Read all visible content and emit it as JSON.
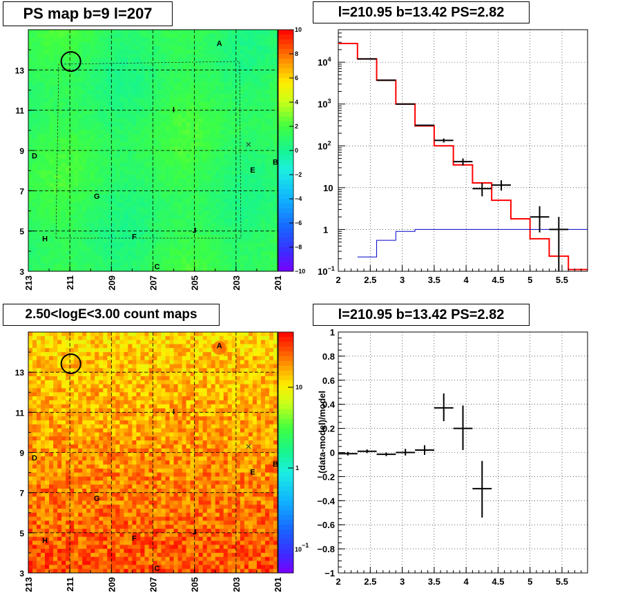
{
  "panels": {
    "tl": {
      "title": "PS map b=9 l=207",
      "x_ticks": [
        "213",
        "211",
        "209",
        "207",
        "205",
        "203",
        "201"
      ],
      "y_ticks": [
        "13",
        "11",
        "9",
        "7",
        "5",
        "3"
      ],
      "colorbar_ticks": [
        "10",
        "8",
        "6",
        "4",
        "2",
        "0",
        "−2",
        "−4",
        "−6",
        "−8",
        "−10"
      ]
    },
    "bl": {
      "title": "2.50<logE<3.00 count maps",
      "x_ticks": [
        "213",
        "211",
        "209",
        "207",
        "205",
        "203",
        "201"
      ],
      "y_ticks": [
        "13",
        "11",
        "9",
        "7",
        "5",
        "3"
      ],
      "colorbar_ticks": [
        "10",
        "1"
      ],
      "colorbar_minor": "10",
      "colorbar_minor_exp": "−1"
    },
    "tr": {
      "title": "l=210.95 b=13.42 PS=2.82",
      "x_ticks": [
        "2",
        "2.5",
        "3",
        "3.5",
        "4",
        "4.5",
        "5",
        "5.5"
      ],
      "y_ticks": [
        {
          "base": "10",
          "exp": "4"
        },
        {
          "base": "10",
          "exp": "3"
        },
        {
          "base": "10",
          "exp": "2"
        },
        {
          "base": "10",
          "exp": ""
        },
        {
          "base": "1",
          "exp": ""
        },
        {
          "base": "10",
          "exp": "−1"
        }
      ]
    },
    "br": {
      "title": "l=210.95 b=13.42 PS=2.82",
      "ylabel": "(data-model)/model",
      "x_ticks": [
        "2",
        "2.5",
        "3",
        "3.5",
        "4",
        "4.5",
        "5",
        "5.5"
      ],
      "y_ticks": [
        "1",
        "0.8",
        "0.6",
        "0.4",
        "0.2",
        "0",
        "−0.2",
        "−0.4",
        "−0.6",
        "−0.8",
        "−1"
      ]
    }
  },
  "source_labels": [
    "A",
    "B",
    "C",
    "D",
    "E",
    "F",
    "G",
    "H",
    "I",
    "J"
  ],
  "chart_data": [
    {
      "type": "heatmap",
      "title": "PS map b=9 l=207",
      "xlim": [
        213,
        201
      ],
      "ylim": [
        3,
        15
      ],
      "zlim": [
        -10,
        10
      ],
      "sources": [
        {
          "name": "A",
          "l": 203.8,
          "b": 14.2
        },
        {
          "name": "B",
          "l": 201.1,
          "b": 8.3
        },
        {
          "name": "C",
          "l": 206.8,
          "b": 3.1
        },
        {
          "name": "D",
          "l": 212.7,
          "b": 8.6
        },
        {
          "name": "E",
          "l": 202.2,
          "b": 7.9
        },
        {
          "name": "F",
          "l": 207.9,
          "b": 4.6
        },
        {
          "name": "G",
          "l": 209.7,
          "b": 6.6
        },
        {
          "name": "H",
          "l": 212.2,
          "b": 4.5
        },
        {
          "name": "I",
          "l": 206.0,
          "b": 10.9
        },
        {
          "name": "J",
          "l": 205.0,
          "b": 4.9
        }
      ],
      "marked_position": {
        "l": 210.95,
        "b": 13.42
      }
    },
    {
      "type": "bar",
      "title": "l=210.95 b=13.42 PS=2.82",
      "xlim": [
        2,
        5.9
      ],
      "ylim": [
        0.1,
        60000
      ],
      "yscale": "log",
      "series": [
        {
          "name": "model",
          "color": "#ff0000",
          "edges": [
            2,
            2.3,
            2.6,
            2.9,
            3.2,
            3.5,
            3.8,
            4.1,
            4.4,
            4.7,
            5.0,
            5.3,
            5.6,
            5.9
          ],
          "values": [
            28000,
            12000,
            3700,
            1000,
            300,
            100,
            35,
            13,
            5,
            1.8,
            0.6,
            0.23,
            0.11
          ]
        },
        {
          "name": "background",
          "color": "#0000cc",
          "edges": [
            2.3,
            2.6,
            2.9,
            3.2,
            5.9
          ],
          "values": [
            0.22,
            0.55,
            0.9,
            1.0
          ]
        },
        {
          "name": "data",
          "color": "#000000",
          "points": [
            {
              "x": 2.45,
              "y": 12000,
              "xerr": 0.15,
              "lo": 11800,
              "hi": 12200
            },
            {
              "x": 2.75,
              "y": 3700,
              "xerr": 0.15,
              "lo": 3620,
              "hi": 3780
            },
            {
              "x": 3.05,
              "y": 1000,
              "xerr": 0.15,
              "lo": 975,
              "hi": 1030
            },
            {
              "x": 3.35,
              "y": 310,
              "xerr": 0.15,
              "lo": 300,
              "hi": 322
            },
            {
              "x": 3.65,
              "y": 135,
              "xerr": 0.15,
              "lo": 120,
              "hi": 150
            },
            {
              "x": 3.95,
              "y": 42,
              "xerr": 0.15,
              "lo": 34,
              "hi": 50
            },
            {
              "x": 4.25,
              "y": 9.5,
              "xerr": 0.15,
              "lo": 6.2,
              "hi": 13
            },
            {
              "x": 4.55,
              "y": 11.5,
              "xerr": 0.15,
              "lo": 8.5,
              "hi": 15
            },
            {
              "x": 5.15,
              "y": 2,
              "xerr": 0.15,
              "lo": 0.85,
              "hi": 3.6
            },
            {
              "x": 5.45,
              "y": 1.0,
              "xerr": 0.15,
              "lo": 0.1,
              "hi": 2.0
            }
          ]
        }
      ]
    },
    {
      "type": "heatmap",
      "title": "2.50<logE<3.00 count maps",
      "xlim": [
        213,
        201
      ],
      "ylim": [
        3,
        15
      ],
      "zscale": "log",
      "zlim": [
        0.05,
        30
      ],
      "sources_same_as_ps_map": true
    },
    {
      "type": "scatter",
      "title": "l=210.95 b=13.42 PS=2.82",
      "ylabel": "(data-model)/model",
      "xlim": [
        2,
        5.9
      ],
      "ylim": [
        -1,
        1
      ],
      "points": [
        {
          "x": 2.15,
          "y": -0.01,
          "xerr": 0.15,
          "lo": -0.025,
          "hi": 0.005
        },
        {
          "x": 2.45,
          "y": 0.01,
          "xerr": 0.15,
          "lo": -0.005,
          "hi": 0.025
        },
        {
          "x": 2.75,
          "y": -0.015,
          "xerr": 0.15,
          "lo": -0.03,
          "hi": 0.0
        },
        {
          "x": 3.05,
          "y": 0.0,
          "xerr": 0.15,
          "lo": -0.025,
          "hi": 0.03
        },
        {
          "x": 3.35,
          "y": 0.02,
          "xerr": 0.15,
          "lo": -0.02,
          "hi": 0.06
        },
        {
          "x": 3.65,
          "y": 0.37,
          "xerr": 0.15,
          "lo": 0.26,
          "hi": 0.49
        },
        {
          "x": 3.95,
          "y": 0.2,
          "xerr": 0.15,
          "lo": 0.02,
          "hi": 0.39
        },
        {
          "x": 4.25,
          "y": -0.3,
          "xerr": 0.15,
          "lo": -0.54,
          "hi": -0.07
        }
      ]
    }
  ]
}
